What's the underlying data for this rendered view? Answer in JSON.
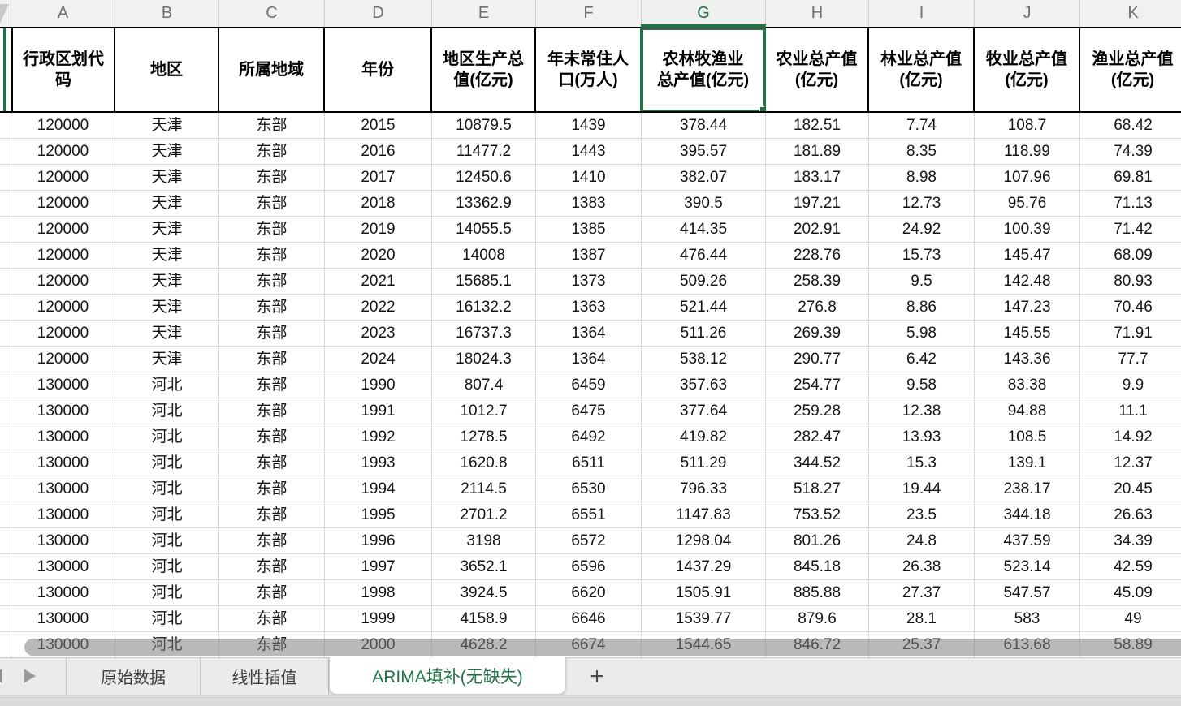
{
  "colors": {
    "accent_green": "#217346",
    "grid_line": "#d9d9d9",
    "header_border": "#000000",
    "scrollbar_overlay": "rgba(128,128,128,0.55)"
  },
  "icons": {
    "prev_sheet": "left-triangle",
    "next_sheet": "right-triangle",
    "add_sheet": "+",
    "select_all_corner": "gray-triangle"
  },
  "spreadsheet": {
    "selected_column": "G",
    "selected_cell": "G1",
    "columns": [
      {
        "letter": "A",
        "header": "行政区划代\n码"
      },
      {
        "letter": "B",
        "header": "地区"
      },
      {
        "letter": "C",
        "header": "所属地域"
      },
      {
        "letter": "D",
        "header": "年份"
      },
      {
        "letter": "E",
        "header": "地区生产总\n值(亿元)"
      },
      {
        "letter": "F",
        "header": "年末常住人\n口(万人)"
      },
      {
        "letter": "G",
        "header": "农林牧渔业\n总产值(亿元)"
      },
      {
        "letter": "H",
        "header": "农业总产值\n(亿元)"
      },
      {
        "letter": "I",
        "header": "林业总产值\n(亿元)"
      },
      {
        "letter": "J",
        "header": "牧业总产值\n(亿元)"
      },
      {
        "letter": "K",
        "header": "渔业总产值\n(亿元)"
      }
    ],
    "rows": [
      [
        "120000",
        "天津",
        "东部",
        "2015",
        "10879.5",
        "1439",
        "378.44",
        "182.51",
        "7.74",
        "108.7",
        "68.42"
      ],
      [
        "120000",
        "天津",
        "东部",
        "2016",
        "11477.2",
        "1443",
        "395.57",
        "181.89",
        "8.35",
        "118.99",
        "74.39"
      ],
      [
        "120000",
        "天津",
        "东部",
        "2017",
        "12450.6",
        "1410",
        "382.07",
        "183.17",
        "8.98",
        "107.96",
        "69.81"
      ],
      [
        "120000",
        "天津",
        "东部",
        "2018",
        "13362.9",
        "1383",
        "390.5",
        "197.21",
        "12.73",
        "95.76",
        "71.13"
      ],
      [
        "120000",
        "天津",
        "东部",
        "2019",
        "14055.5",
        "1385",
        "414.35",
        "202.91",
        "24.92",
        "100.39",
        "71.42"
      ],
      [
        "120000",
        "天津",
        "东部",
        "2020",
        "14008",
        "1387",
        "476.44",
        "228.76",
        "15.73",
        "145.47",
        "68.09"
      ],
      [
        "120000",
        "天津",
        "东部",
        "2021",
        "15685.1",
        "1373",
        "509.26",
        "258.39",
        "9.5",
        "142.48",
        "80.93"
      ],
      [
        "120000",
        "天津",
        "东部",
        "2022",
        "16132.2",
        "1363",
        "521.44",
        "276.8",
        "8.86",
        "147.23",
        "70.46"
      ],
      [
        "120000",
        "天津",
        "东部",
        "2023",
        "16737.3",
        "1364",
        "511.26",
        "269.39",
        "5.98",
        "145.55",
        "71.91"
      ],
      [
        "120000",
        "天津",
        "东部",
        "2024",
        "18024.3",
        "1364",
        "538.12",
        "290.77",
        "6.42",
        "143.36",
        "77.7"
      ],
      [
        "130000",
        "河北",
        "东部",
        "1990",
        "807.4",
        "6459",
        "357.63",
        "254.77",
        "9.58",
        "83.38",
        "9.9"
      ],
      [
        "130000",
        "河北",
        "东部",
        "1991",
        "1012.7",
        "6475",
        "377.64",
        "259.28",
        "12.38",
        "94.88",
        "11.1"
      ],
      [
        "130000",
        "河北",
        "东部",
        "1992",
        "1278.5",
        "6492",
        "419.82",
        "282.47",
        "13.93",
        "108.5",
        "14.92"
      ],
      [
        "130000",
        "河北",
        "东部",
        "1993",
        "1620.8",
        "6511",
        "511.29",
        "344.52",
        "15.3",
        "139.1",
        "12.37"
      ],
      [
        "130000",
        "河北",
        "东部",
        "1994",
        "2114.5",
        "6530",
        "796.33",
        "518.27",
        "19.44",
        "238.17",
        "20.45"
      ],
      [
        "130000",
        "河北",
        "东部",
        "1995",
        "2701.2",
        "6551",
        "1147.83",
        "753.52",
        "23.5",
        "344.18",
        "26.63"
      ],
      [
        "130000",
        "河北",
        "东部",
        "1996",
        "3198",
        "6572",
        "1298.04",
        "801.26",
        "24.8",
        "437.59",
        "34.39"
      ],
      [
        "130000",
        "河北",
        "东部",
        "1997",
        "3652.1",
        "6596",
        "1437.29",
        "845.18",
        "26.38",
        "523.14",
        "42.59"
      ],
      [
        "130000",
        "河北",
        "东部",
        "1998",
        "3924.5",
        "6620",
        "1505.91",
        "885.88",
        "27.37",
        "547.57",
        "45.09"
      ],
      [
        "130000",
        "河北",
        "东部",
        "1999",
        "4158.9",
        "6646",
        "1539.77",
        "879.6",
        "28.1",
        "583",
        "49"
      ],
      [
        "130000",
        "河北",
        "东部",
        "2000",
        "4628.2",
        "6674",
        "1544.65",
        "846.72",
        "25.37",
        "613.68",
        "58.89"
      ]
    ]
  },
  "tab_bar": {
    "tabs": [
      {
        "label": "原始数据",
        "active": false
      },
      {
        "label": "线性插值",
        "active": false
      },
      {
        "label": "ARIMA填补(无缺失)",
        "active": true
      }
    ],
    "add_button": "+"
  }
}
